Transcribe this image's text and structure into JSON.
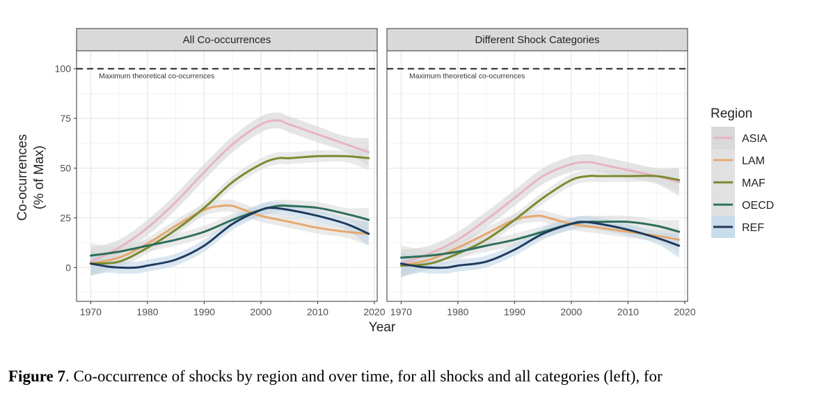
{
  "chart_data": {
    "type": "line",
    "ylabel": "Co-ocurrences\n(% of Max)",
    "xlabel": "Year",
    "x_ticks": [
      1970,
      1980,
      1990,
      2000,
      2010,
      2020
    ],
    "y_ticks": [
      0,
      25,
      50,
      75,
      100
    ],
    "xlim": [
      1967.5,
      2020.5
    ],
    "ylim": [
      -17,
      109
    ],
    "reference_line": {
      "y": 100,
      "label": "Maximum theoretical co-ocurrences"
    },
    "legend": {
      "title": "Region",
      "position": "right",
      "entries": [
        {
          "name": "ASIA",
          "color": "#e8b4c0",
          "ribbon": "#cfcfcf"
        },
        {
          "name": "LAM",
          "color": "#e6a86e",
          "ribbon": "#d9d9d9"
        },
        {
          "name": "MAF",
          "color": "#7a8a2e",
          "ribbon": "#d9d9d9"
        },
        {
          "name": "OECD",
          "color": "#2e6e5a",
          "ribbon": "#d9d9d9"
        },
        {
          "name": "REF",
          "color": "#1f3a5c",
          "ribbon": "#bcd3e6"
        }
      ]
    },
    "panels": [
      {
        "title": "All Co-occurrences",
        "series": [
          {
            "name": "ASIA",
            "x": [
              1970,
              1975,
              1980,
              1985,
              1990,
              1995,
              2000,
              2003,
              2005,
              2010,
              2015,
              2019
            ],
            "y": [
              3,
              10,
              20,
              33,
              48,
              62,
              72,
              74,
              72,
              67,
              62,
              58
            ],
            "band": 4
          },
          {
            "name": "LAM",
            "x": [
              1970,
              1975,
              1980,
              1985,
              1990,
              1993,
              1995,
              1997,
              2000,
              2005,
              2010,
              2015,
              2019
            ],
            "y": [
              2,
              5,
              12,
              21,
              29,
              31,
              31,
              29,
              26,
              23,
              20,
              18,
              17
            ],
            "band": 3
          },
          {
            "name": "MAF",
            "x": [
              1970,
              1975,
              1980,
              1985,
              1990,
              1995,
              2000,
              2003,
              2005,
              2010,
              2015,
              2019
            ],
            "y": [
              2,
              3,
              10,
              19,
              30,
              43,
              52,
              55,
              55,
              56,
              56,
              55
            ],
            "band": 3
          },
          {
            "name": "OECD",
            "x": [
              1970,
              1975,
              1980,
              1985,
              1990,
              1995,
              2000,
              2003,
              2005,
              2010,
              2015,
              2019
            ],
            "y": [
              6,
              8,
              11,
              14,
              18,
              24,
              29,
              31,
              31,
              30,
              27,
              24
            ],
            "band": 3
          },
          {
            "name": "REF",
            "x": [
              1970,
              1973,
              1975,
              1978,
              1980,
              1985,
              1990,
              1995,
              2000,
              2002,
              2005,
              2010,
              2015,
              2019
            ],
            "y": [
              2,
              0.5,
              0,
              0,
              1,
              4,
              11,
              22,
              29,
              30,
              29,
              26,
              22,
              17
            ],
            "band": 3
          }
        ]
      },
      {
        "title": "Different Shock Categories",
        "series": [
          {
            "name": "ASIA",
            "x": [
              1970,
              1975,
              1980,
              1985,
              1990,
              1995,
              2000,
              2003,
              2005,
              2010,
              2015,
              2019
            ],
            "y": [
              2,
              7,
              14,
              24,
              35,
              46,
              52,
              53,
              52,
              49,
              46,
              43
            ],
            "band": 4
          },
          {
            "name": "LAM",
            "x": [
              1970,
              1975,
              1980,
              1985,
              1990,
              1994,
              1996,
              2000,
              2005,
              2010,
              2015,
              2019
            ],
            "y": [
              1,
              4,
              10,
              17,
              24,
              26,
              25,
              22,
              20,
              18,
              16,
              14
            ],
            "band": 3
          },
          {
            "name": "MAF",
            "x": [
              1970,
              1975,
              1980,
              1985,
              1990,
              1995,
              2000,
              2003,
              2005,
              2010,
              2015,
              2019
            ],
            "y": [
              1,
              2,
              7,
              14,
              24,
              35,
              44,
              46,
              46,
              46,
              46,
              44
            ],
            "band": 3
          },
          {
            "name": "OECD",
            "x": [
              1970,
              1975,
              1980,
              1985,
              1990,
              1995,
              2000,
              2003,
              2005,
              2010,
              2015,
              2019
            ],
            "y": [
              5,
              6,
              8,
              11,
              14,
              18,
              22,
              23,
              23,
              23,
              21,
              18
            ],
            "band": 3
          },
          {
            "name": "REF",
            "x": [
              1970,
              1973,
              1975,
              1978,
              1980,
              1985,
              1990,
              1995,
              2000,
              2002,
              2005,
              2010,
              2015,
              2019
            ],
            "y": [
              2,
              0.5,
              0,
              0,
              1,
              3,
              9,
              17,
              22,
              23,
              22,
              19,
              15,
              11
            ],
            "band": 3
          }
        ]
      }
    ]
  },
  "caption": {
    "label": "Figure 7",
    "text": ". Co-occurrence of shocks by region and over time, for all shocks and all categories (left), for"
  }
}
